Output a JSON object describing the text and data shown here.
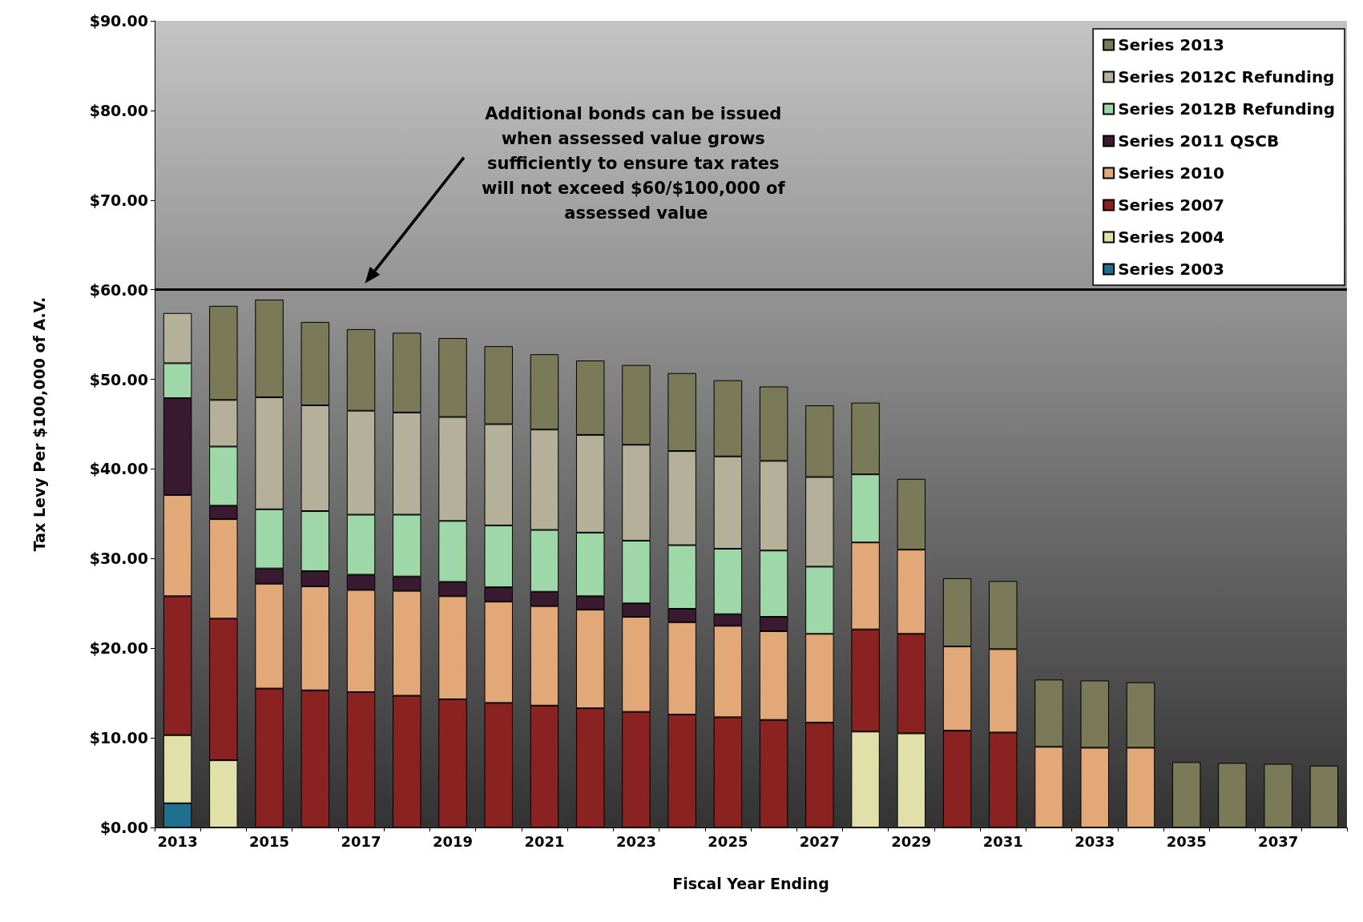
{
  "chart_data": {
    "type": "bar",
    "stacked": true,
    "xlabel": "Fiscal Year Ending",
    "ylabel": "Tax Levy Per $100,000 of A.V.",
    "categories": [
      "2013",
      null,
      "2015",
      null,
      "2017",
      null,
      "2019",
      null,
      "2021",
      null,
      "2023",
      null,
      "2025",
      null,
      "2027",
      null,
      "2029",
      null,
      "2031",
      null,
      "2033",
      null,
      "2035",
      null,
      "2037",
      null
    ],
    "ylim": [
      0,
      90
    ],
    "yticks": [
      {
        "value": 0,
        "label": "$0.00"
      },
      {
        "value": 10,
        "label": "$10.00"
      },
      {
        "value": 20,
        "label": "$20.00"
      },
      {
        "value": 30,
        "label": "$30.00"
      },
      {
        "value": 40,
        "label": "$40.00"
      },
      {
        "value": 50,
        "label": "$50.00"
      },
      {
        "value": 60,
        "label": "$60.00"
      },
      {
        "value": 70,
        "label": "$70.00"
      },
      {
        "value": 80,
        "label": "$80.00"
      },
      {
        "value": 90,
        "label": "$90.00"
      }
    ],
    "legend": "top right",
    "series": [
      {
        "name": "Series 2003",
        "color": "#1f6f8f",
        "values": [
          2.7,
          null,
          null,
          null,
          null,
          null,
          null,
          null,
          null,
          null,
          null,
          null,
          null,
          null,
          null,
          null,
          null,
          null,
          null,
          null,
          null,
          null,
          null,
          null,
          null,
          null
        ]
      },
      {
        "name": "Series 2004",
        "color": "#e0e0a8",
        "values": [
          7.6,
          7.5,
          null,
          null,
          null,
          null,
          null,
          null,
          null,
          null,
          null,
          null,
          null,
          null,
          null,
          10.7,
          10.5,
          null,
          null,
          null,
          null,
          null,
          null,
          null,
          null,
          null
        ]
      },
      {
        "name": "Series 2007",
        "color": "#8b2222",
        "values": [
          15.5,
          15.8,
          15.5,
          15.3,
          15.1,
          14.7,
          14.3,
          13.9,
          13.6,
          13.3,
          12.9,
          12.6,
          12.3,
          12.0,
          11.7,
          11.4,
          11.1,
          10.8,
          10.6,
          null,
          null,
          null,
          null,
          null,
          null,
          null
        ]
      },
      {
        "name": "Series 2010",
        "color": "#e3a877",
        "values": [
          11.3,
          11.1,
          11.7,
          11.6,
          11.4,
          11.7,
          11.5,
          11.3,
          11.1,
          11.0,
          10.6,
          10.3,
          10.2,
          9.9,
          9.9,
          9.7,
          9.4,
          9.4,
          9.3,
          9.0,
          8.9,
          8.9,
          null,
          null,
          null,
          null
        ]
      },
      {
        "name": "Series 2011 QSCB",
        "color": "#3a1a30",
        "values": [
          10.8,
          1.5,
          1.7,
          1.7,
          1.7,
          1.6,
          1.6,
          1.6,
          1.6,
          1.5,
          1.5,
          1.5,
          1.3,
          1.6,
          null,
          null,
          null,
          null,
          null,
          null,
          null,
          null,
          null,
          null,
          null,
          null
        ]
      },
      {
        "name": "Series 2012B Refunding",
        "color": "#9ed8a8",
        "values": [
          3.9,
          6.6,
          6.6,
          6.7,
          6.7,
          6.9,
          6.8,
          6.9,
          6.9,
          7.1,
          7.0,
          7.1,
          7.3,
          7.4,
          7.5,
          7.6,
          null,
          null,
          null,
          null,
          null,
          null,
          null,
          null,
          null,
          null
        ]
      },
      {
        "name": "Series 2012C Refunding",
        "color": "#b5b09a",
        "values": [
          5.6,
          5.2,
          12.5,
          11.8,
          11.6,
          11.4,
          11.6,
          11.3,
          11.2,
          10.9,
          10.7,
          10.5,
          10.3,
          10.0,
          10.0,
          null,
          null,
          null,
          null,
          null,
          null,
          null,
          null,
          null,
          null,
          null
        ]
      },
      {
        "name": "Series 2013",
        "color": "#7a7a58",
        "values": [
          null,
          10.5,
          10.9,
          9.3,
          9.1,
          8.9,
          8.8,
          8.7,
          8.4,
          8.3,
          8.9,
          8.7,
          8.5,
          8.3,
          8.0,
          8.0,
          7.9,
          7.6,
          7.6,
          7.5,
          7.5,
          7.3,
          7.3,
          7.2,
          7.1,
          6.9
        ]
      }
    ],
    "ref_lines": [
      {
        "axis": "y",
        "value": 60,
        "color": "#000000"
      }
    ],
    "annotations": [
      "Additional bonds can be issued when assessed value grows sufficiently to ensure tax rates will not exceed $60/$100,000 of assessed value"
    ]
  }
}
